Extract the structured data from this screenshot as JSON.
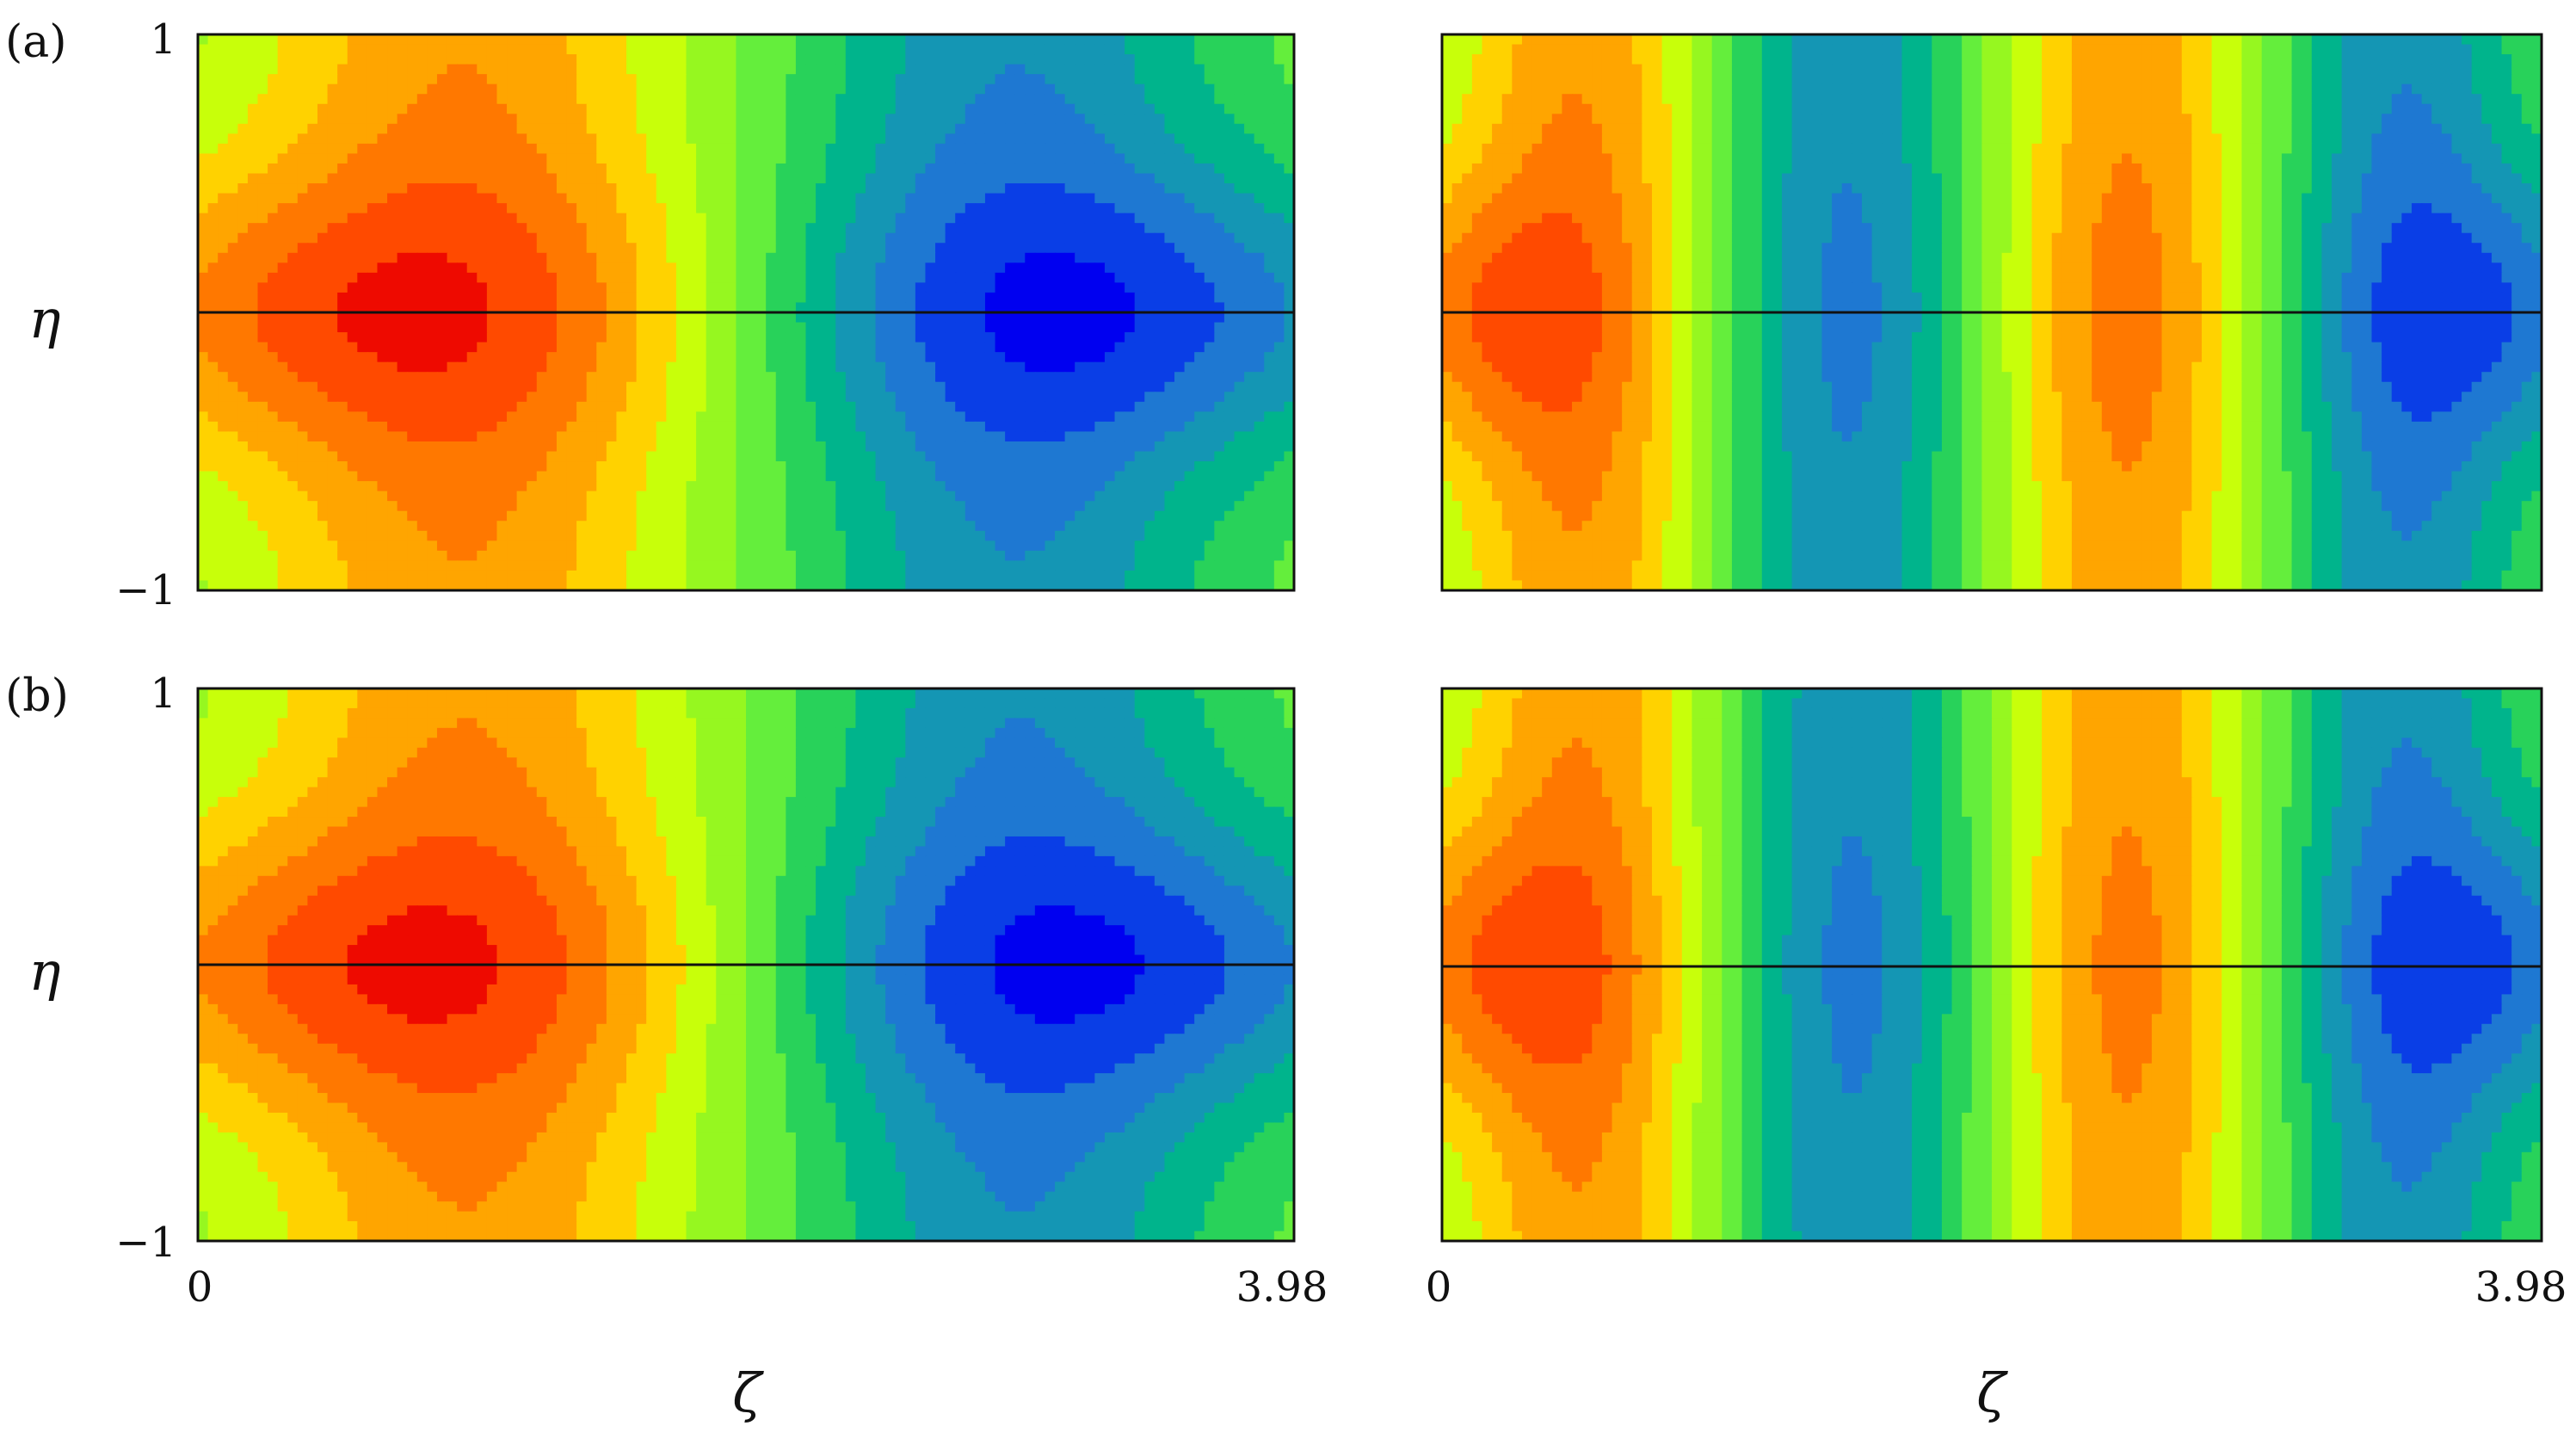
{
  "figure": {
    "rows": [
      {
        "label": "(a)"
      },
      {
        "label": "(b)"
      }
    ],
    "ylabel": "η",
    "xlabel": "ζ",
    "ytick_top": "1",
    "ytick_bottom": "−1",
    "xtick_left": "0",
    "xtick_right": "3.98"
  },
  "chart_data": [
    {
      "type": "heatmap",
      "panel": "a-left",
      "row": "(a)",
      "mode_count": 2,
      "x_range": [
        0,
        3.98
      ],
      "y_range": [
        -1,
        1
      ],
      "centerline": 0,
      "extrema": [
        {
          "x": 0.96,
          "y": 0.0,
          "sign": "positive"
        },
        {
          "x": 2.96,
          "y": 0.0,
          "sign": "negative"
        }
      ]
    },
    {
      "type": "heatmap",
      "panel": "a-right",
      "row": "(a)",
      "mode_count": 4,
      "x_range": [
        0,
        3.98
      ],
      "y_range": [
        -1,
        1
      ],
      "centerline": 0,
      "extrema": [
        {
          "x": 0.51,
          "y": 0.0,
          "sign": "positive"
        },
        {
          "x": 1.45,
          "y": 0.0,
          "sign": "negative"
        },
        {
          "x": 2.49,
          "y": 0.0,
          "sign": "positive"
        },
        {
          "x": 3.47,
          "y": 0.0,
          "sign": "negative"
        }
      ]
    },
    {
      "type": "heatmap",
      "panel": "b-left",
      "row": "(b)",
      "mode_count": 2,
      "x_range": [
        0,
        3.98
      ],
      "y_range": [
        -1,
        1
      ],
      "centerline": 0,
      "extrema": [
        {
          "x": 0.99,
          "y": 0.0,
          "sign": "positive"
        },
        {
          "x": 2.98,
          "y": 0.0,
          "sign": "negative"
        }
      ]
    },
    {
      "type": "heatmap",
      "panel": "b-right",
      "row": "(b)",
      "mode_count": 4,
      "x_range": [
        0,
        3.98
      ],
      "y_range": [
        -1,
        1
      ],
      "centerline": 0,
      "extrema": [
        {
          "x": 0.51,
          "y": 0.0,
          "sign": "positive"
        },
        {
          "x": 1.48,
          "y": 0.0,
          "sign": "negative"
        },
        {
          "x": 2.49,
          "y": 0.0,
          "sign": "positive"
        },
        {
          "x": 3.47,
          "y": 0.0,
          "sign": "negative"
        }
      ]
    }
  ],
  "colors": {
    "scale": [
      "#0000f0",
      "#0a3ee6",
      "#1e78d2",
      "#1496b4",
      "#00b48c",
      "#28d25a",
      "#64ee3c",
      "#96f720",
      "#c8ff0a",
      "#ffd200",
      "#ffa500",
      "#ff7800",
      "#ff4a00",
      "#ee0a00"
    ],
    "centerline": "#111111",
    "frame": "#111111"
  }
}
